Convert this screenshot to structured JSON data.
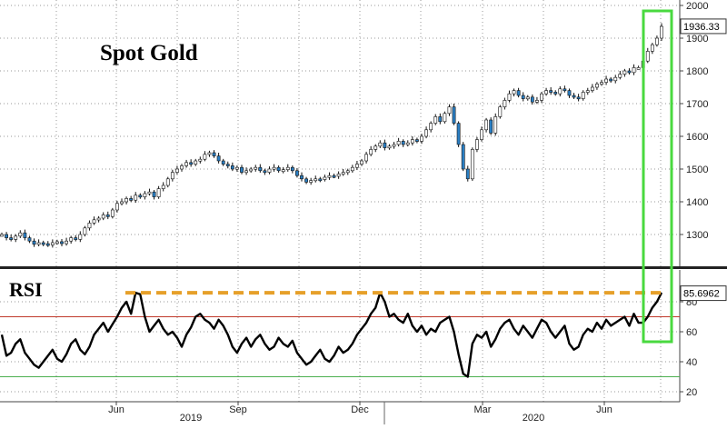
{
  "chart_data": [
    {
      "type": "line",
      "title": "Spot Gold",
      "style": "candlestick (rendered as daily close line with bodies)",
      "ylim": [
        1200,
        2000
      ],
      "yticks": [
        1300,
        1400,
        1500,
        1600,
        1700,
        1800,
        1900,
        2000
      ],
      "last_value_label": "1936.33",
      "last_value": 1936.33,
      "x_labels": [
        "Jun",
        "Sep",
        "Dec",
        "Mar",
        "Jun"
      ],
      "year_labels": [
        "2019",
        "2020"
      ],
      "series": [
        {
          "values": [
            1300,
            1290,
            1285,
            1295,
            1305,
            1290,
            1280,
            1270,
            1275,
            1272,
            1268,
            1275,
            1278,
            1272,
            1280,
            1290,
            1285,
            1300,
            1320,
            1335,
            1345,
            1350,
            1360,
            1355,
            1375,
            1395,
            1400,
            1410,
            1405,
            1420,
            1415,
            1425,
            1430,
            1415,
            1440,
            1450,
            1470,
            1490,
            1500,
            1510,
            1520,
            1515,
            1525,
            1530,
            1545,
            1550,
            1540,
            1525,
            1515,
            1510,
            1500,
            1505,
            1490,
            1495,
            1500,
            1505,
            1495,
            1490,
            1500,
            1505,
            1495,
            1498,
            1505,
            1495,
            1480,
            1470,
            1460,
            1465,
            1470,
            1468,
            1475,
            1480,
            1478,
            1485,
            1490,
            1495,
            1505,
            1515,
            1525,
            1545,
            1560,
            1570,
            1580,
            1565,
            1570,
            1575,
            1585,
            1575,
            1580,
            1590,
            1585,
            1600,
            1620,
            1640,
            1660,
            1645,
            1670,
            1690,
            1640,
            1575,
            1500,
            1470,
            1560,
            1590,
            1620,
            1650,
            1610,
            1660,
            1690,
            1710,
            1730,
            1740,
            1725,
            1715,
            1720,
            1705,
            1710,
            1730,
            1740,
            1735,
            1730,
            1745,
            1740,
            1725,
            1720,
            1715,
            1735,
            1740,
            1750,
            1760,
            1765,
            1775,
            1770,
            1780,
            1790,
            1800,
            1795,
            1810,
            1810,
            1830,
            1860,
            1880,
            1900,
            1936
          ]
        }
      ]
    },
    {
      "type": "line",
      "title": "RSI",
      "ylim": [
        20,
        95
      ],
      "yticks": [
        20,
        40,
        60,
        80
      ],
      "last_value_label": "85.6962",
      "last_value": 85.6962,
      "reference_lines": {
        "overbought": 70,
        "oversold": 30
      },
      "peak_level": 86,
      "series": [
        {
          "values": [
            58,
            44,
            46,
            52,
            55,
            46,
            42,
            38,
            36,
            40,
            44,
            48,
            42,
            40,
            45,
            52,
            55,
            48,
            45,
            50,
            58,
            62,
            66,
            60,
            65,
            70,
            76,
            80,
            72,
            86,
            85,
            70,
            60,
            64,
            68,
            62,
            58,
            60,
            56,
            50,
            58,
            63,
            70,
            72,
            68,
            66,
            62,
            68,
            64,
            58,
            50,
            46,
            52,
            56,
            50,
            55,
            58,
            52,
            48,
            50,
            56,
            52,
            50,
            54,
            46,
            42,
            38,
            40,
            44,
            48,
            42,
            40,
            44,
            50,
            46,
            48,
            52,
            58,
            62,
            66,
            72,
            76,
            86,
            80,
            70,
            72,
            68,
            66,
            72,
            64,
            60,
            64,
            58,
            62,
            60,
            66,
            68,
            70,
            60,
            45,
            32,
            30,
            52,
            58,
            56,
            60,
            50,
            55,
            62,
            66,
            68,
            62,
            58,
            64,
            60,
            56,
            62,
            68,
            66,
            60,
            56,
            60,
            64,
            52,
            48,
            50,
            58,
            62,
            60,
            66,
            62,
            68,
            64,
            66,
            68,
            70,
            64,
            72,
            66,
            66,
            70,
            76,
            80,
            86
          ]
        }
      ]
    }
  ]
}
